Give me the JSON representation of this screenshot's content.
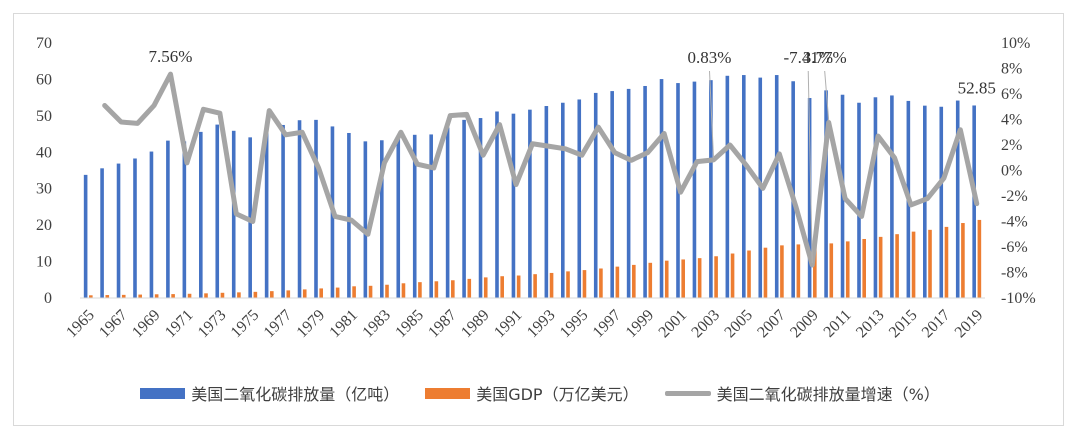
{
  "chart_data": {
    "type": "bar",
    "categories": [
      "1965",
      "1966",
      "1967",
      "1968",
      "1969",
      "1970",
      "1971",
      "1972",
      "1973",
      "1974",
      "1975",
      "1976",
      "1977",
      "1978",
      "1979",
      "1980",
      "1981",
      "1982",
      "1983",
      "1984",
      "1985",
      "1986",
      "1987",
      "1988",
      "1989",
      "1990",
      "1991",
      "1992",
      "1993",
      "1994",
      "1995",
      "1996",
      "1997",
      "1998",
      "1999",
      "2000",
      "2001",
      "2002",
      "2003",
      "2004",
      "2005",
      "2006",
      "2007",
      "2008",
      "2009",
      "2010",
      "2011",
      "2012",
      "2013",
      "2014",
      "2015",
      "2016",
      "2017",
      "2018",
      "2019"
    ],
    "x_tick_labels": [
      "1965",
      "1967",
      "1969",
      "1971",
      "1973",
      "1975",
      "1977",
      "1979",
      "1981",
      "1983",
      "1985",
      "1987",
      "1989",
      "1991",
      "1993",
      "1995",
      "1997",
      "1999",
      "2001",
      "2003",
      "2005",
      "2007",
      "2009",
      "2011",
      "2013",
      "2015",
      "2017",
      "2019"
    ],
    "series": [
      {
        "name": "美国二氧化碳排放量（亿吨）",
        "type": "bar",
        "axis": "left",
        "color": "#4472C4",
        "values": [
          33.8,
          35.6,
          36.9,
          38.3,
          40.2,
          43.2,
          43.0,
          45.6,
          47.6,
          45.9,
          44.1,
          46.2,
          47.5,
          48.8,
          48.9,
          47.1,
          45.3,
          43.0,
          43.3,
          44.6,
          44.8,
          44.9,
          46.8,
          48.9,
          49.4,
          51.2,
          50.6,
          51.7,
          52.7,
          53.6,
          54.5,
          56.3,
          56.8,
          57.4,
          58.2,
          60.1,
          59.0,
          59.4,
          59.8,
          61.0,
          61.2,
          60.5,
          61.2,
          59.5,
          54.9,
          57.0,
          55.8,
          53.6,
          55.1,
          55.6,
          54.1,
          52.8,
          52.5,
          54.2,
          52.85
        ]
      },
      {
        "name": "美国GDP（万亿美元）",
        "type": "bar",
        "axis": "left",
        "color": "#ED7D31",
        "values": [
          0.74,
          0.81,
          0.86,
          0.94,
          1.02,
          1.07,
          1.16,
          1.28,
          1.43,
          1.55,
          1.69,
          1.88,
          2.09,
          2.36,
          2.63,
          2.86,
          3.21,
          3.35,
          3.64,
          4.04,
          4.35,
          4.59,
          4.87,
          5.25,
          5.66,
          5.98,
          6.17,
          6.54,
          6.88,
          7.31,
          7.66,
          8.1,
          8.61,
          9.09,
          9.66,
          10.25,
          10.58,
          10.94,
          11.46,
          12.21,
          13.04,
          13.81,
          14.45,
          14.71,
          14.45,
          14.99,
          15.54,
          16.2,
          16.78,
          17.52,
          18.22,
          18.71,
          19.52,
          20.58,
          21.43
        ]
      },
      {
        "name": "美国二氧化碳排放量增速（%）",
        "type": "line",
        "axis": "right",
        "color": "#A5A5A5",
        "values": [
          null,
          5.1,
          3.8,
          3.7,
          5.1,
          7.56,
          0.6,
          4.8,
          4.5,
          -3.4,
          -4.0,
          4.7,
          2.8,
          3.0,
          0.2,
          -3.6,
          -3.9,
          -5.0,
          0.6,
          3.0,
          0.5,
          0.2,
          4.3,
          4.4,
          1.2,
          3.6,
          -1.1,
          2.1,
          1.9,
          1.7,
          1.2,
          3.4,
          1.4,
          0.8,
          1.4,
          2.9,
          -1.7,
          0.7,
          0.83,
          2.0,
          0.4,
          -1.4,
          1.3,
          -2.8,
          -7.41,
          3.77,
          -2.2,
          -3.6,
          2.7,
          1.0,
          -2.7,
          -2.2,
          -0.6,
          3.2,
          -2.6
        ]
      }
    ],
    "y_left": {
      "min": 0,
      "max": 70,
      "step": 10,
      "tick_labels": [
        "0",
        "10",
        "20",
        "30",
        "40",
        "50",
        "60",
        "70"
      ]
    },
    "y_right": {
      "min": -10,
      "max": 10,
      "step": 2,
      "tick_labels": [
        "-10%",
        "-8%",
        "-6%",
        "-4%",
        "-2%",
        "0%",
        "2%",
        "4%",
        "6%",
        "8%",
        "10%"
      ]
    },
    "annotations": [
      {
        "category": "1970",
        "series": "美国二氧化碳排放量增速（%）",
        "text": "7.56%",
        "leader": false
      },
      {
        "category": "2003",
        "series": "美国二氧化碳排放量增速（%）",
        "text": "0.83%",
        "leader": true
      },
      {
        "category": "2009",
        "series": "美国二氧化碳排放量增速（%）",
        "text": "-7.41%",
        "leader": true
      },
      {
        "category": "2010",
        "series": "美国二氧化碳排放量增速（%）",
        "text": "3.77%",
        "leader": true
      },
      {
        "category": "2019",
        "series": "美国二氧化碳排放量（亿吨）",
        "text": "52.85",
        "leader": false,
        "color": "#2E75B6"
      }
    ],
    "legend_position": "bottom",
    "grid": false,
    "title": "",
    "xlabel": "",
    "ylabel": ""
  }
}
